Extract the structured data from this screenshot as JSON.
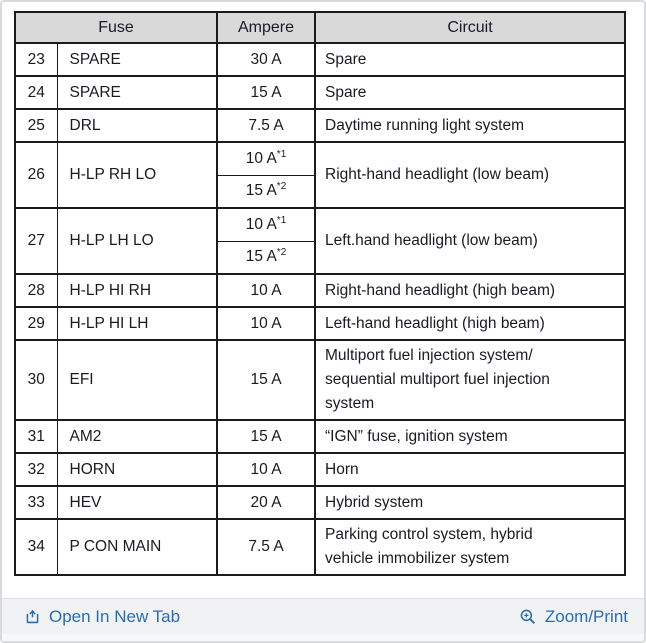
{
  "table": {
    "headers": {
      "fuse": "Fuse",
      "ampere": "Ampere",
      "circuit": "Circuit"
    },
    "rows": [
      {
        "num": "23",
        "name": "SPARE",
        "amperes": [
          {
            "value": "30 A"
          }
        ],
        "circuit": "Spare"
      },
      {
        "num": "24",
        "name": "SPARE",
        "amperes": [
          {
            "value": "15 A"
          }
        ],
        "circuit": "Spare"
      },
      {
        "num": "25",
        "name": "DRL",
        "amperes": [
          {
            "value": "7.5 A"
          }
        ],
        "circuit": "Daytime running light system"
      },
      {
        "num": "26",
        "name": "H-LP RH LO",
        "amperes": [
          {
            "value": "10 A",
            "sup": "*1"
          },
          {
            "value": "15 A",
            "sup": "*2"
          }
        ],
        "circuit": "Right-hand headlight (low beam)"
      },
      {
        "num": "27",
        "name": "H-LP LH LO",
        "amperes": [
          {
            "value": "10 A",
            "sup": "*1"
          },
          {
            "value": "15 A",
            "sup": "*2"
          }
        ],
        "circuit": "Left.hand headlight (low beam)"
      },
      {
        "num": "28",
        "name": "H-LP HI RH",
        "amperes": [
          {
            "value": "10 A"
          }
        ],
        "circuit": "Right-hand headlight (high beam)"
      },
      {
        "num": "29",
        "name": "H-LP HI LH",
        "amperes": [
          {
            "value": "10 A"
          }
        ],
        "circuit": "Left-hand headlight (high beam)"
      },
      {
        "num": "30",
        "name": "EFI",
        "amperes": [
          {
            "value": "15 A"
          }
        ],
        "circuit": "Multiport fuel injection system/\nsequential multiport fuel injection\nsystem"
      },
      {
        "num": "31",
        "name": "AM2",
        "amperes": [
          {
            "value": "15 A"
          }
        ],
        "circuit": "“IGN” fuse, ignition system"
      },
      {
        "num": "32",
        "name": "HORN",
        "amperes": [
          {
            "value": "10 A"
          }
        ],
        "circuit": "Horn"
      },
      {
        "num": "33",
        "name": "HEV",
        "amperes": [
          {
            "value": "20 A"
          }
        ],
        "circuit": "Hybrid system"
      },
      {
        "num": "34",
        "name": "P CON MAIN",
        "amperes": [
          {
            "value": "7.5 A"
          }
        ],
        "circuit": "Parking control system, hybrid\nvehicle immobilizer system"
      }
    ]
  },
  "footer": {
    "open_in_new_tab": "Open In New Tab",
    "zoom_print": "Zoom/Print"
  },
  "colors": {
    "link": "#2a6db5",
    "table_border": "#1b1b1f",
    "header_bg": "#d9d9d9",
    "footer_bg": "#f1f2f3",
    "text": "#1a1a22"
  }
}
